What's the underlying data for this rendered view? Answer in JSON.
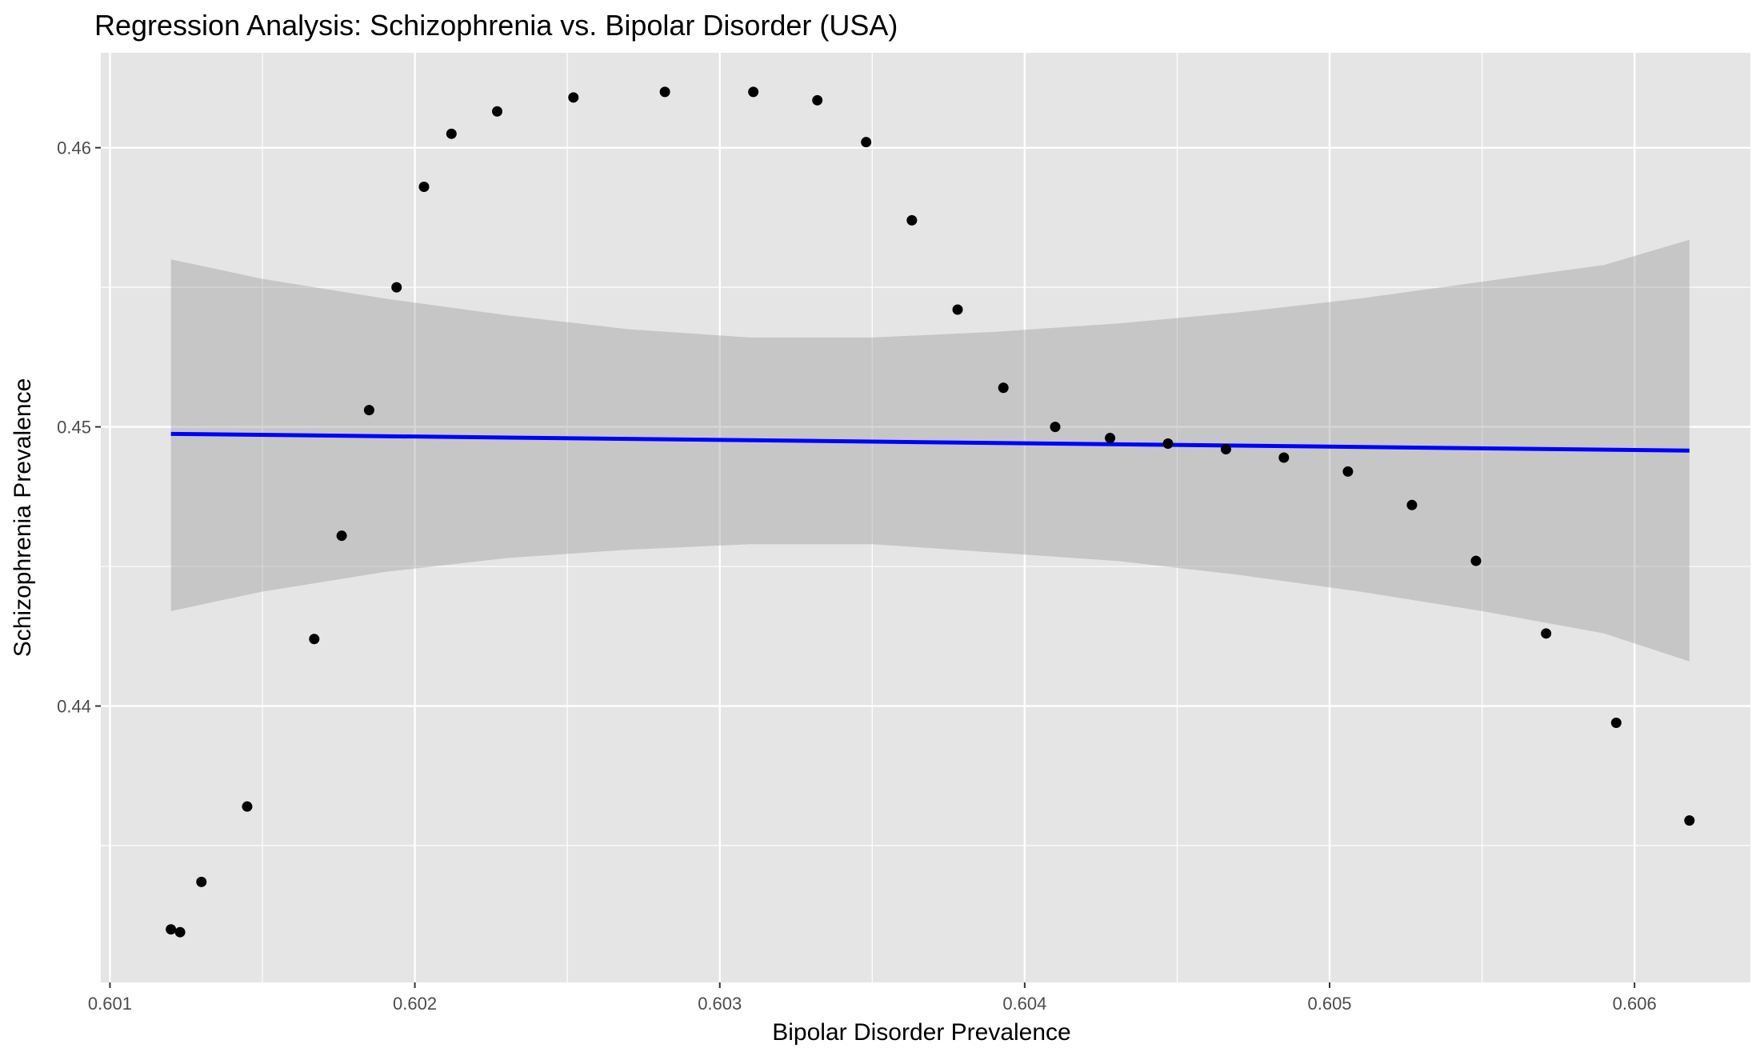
{
  "chart_data": {
    "type": "scatter",
    "title": "Regression Analysis: Schizophrenia vs. Bipolar Disorder (USA)",
    "xlabel": "Bipolar Disorder Prevalence",
    "ylabel": "Schizophrenia Prevalence",
    "xlim": [
      0.60097,
      0.60638
    ],
    "ylim": [
      0.4301,
      0.4634
    ],
    "x_ticks": [
      0.601,
      0.602,
      0.603,
      0.604,
      0.605,
      0.606
    ],
    "x_tick_labels": [
      "0.601",
      "0.602",
      "0.603",
      "0.604",
      "0.605",
      "0.606"
    ],
    "y_ticks": [
      0.44,
      0.45,
      0.46
    ],
    "y_tick_labels": [
      "0.44",
      "0.45",
      "0.46"
    ],
    "grid": true,
    "points": {
      "x": [
        0.6012,
        0.60123,
        0.6013,
        0.60145,
        0.60167,
        0.60176,
        0.60185,
        0.60194,
        0.60203,
        0.60212,
        0.60227,
        0.60252,
        0.60282,
        0.60311,
        0.60332,
        0.60348,
        0.60363,
        0.60378,
        0.60393,
        0.6041,
        0.60428,
        0.60447,
        0.60466,
        0.60485,
        0.60506,
        0.60527,
        0.60548,
        0.60571,
        0.60594,
        0.60618
      ],
      "y": [
        0.432,
        0.4319,
        0.4337,
        0.4364,
        0.4424,
        0.4461,
        0.4506,
        0.455,
        0.4586,
        0.4605,
        0.4613,
        0.4618,
        0.462,
        0.462,
        0.4617,
        0.4602,
        0.4574,
        0.4542,
        0.4514,
        0.45,
        0.4496,
        0.4494,
        0.4492,
        0.4489,
        0.4484,
        0.4472,
        0.4452,
        0.4426,
        0.4394,
        0.4359
      ]
    },
    "regression_line": {
      "x": [
        0.6012,
        0.60618
      ],
      "y": [
        0.44975,
        0.44915
      ]
    },
    "confidence_band": {
      "x": [
        0.6012,
        0.6015,
        0.6019,
        0.6023,
        0.6027,
        0.6031,
        0.6033,
        0.6035,
        0.6039,
        0.6043,
        0.6047,
        0.6051,
        0.6055,
        0.6059,
        0.60618
      ],
      "upper": [
        0.456,
        0.4553,
        0.4546,
        0.454,
        0.4535,
        0.4532,
        0.4532,
        0.4532,
        0.4534,
        0.4537,
        0.4541,
        0.4546,
        0.4552,
        0.4558,
        0.4567
      ],
      "lower": [
        0.4434,
        0.4441,
        0.4448,
        0.4453,
        0.4456,
        0.4458,
        0.4458,
        0.4458,
        0.4455,
        0.4452,
        0.4447,
        0.4441,
        0.4434,
        0.4426,
        0.4416
      ]
    },
    "colors": {
      "panel_background": "#e5e5e5",
      "grid": "#ffffff",
      "points": "#000000",
      "regression_line": "#0000ff",
      "confidence_band": "#999999"
    }
  }
}
